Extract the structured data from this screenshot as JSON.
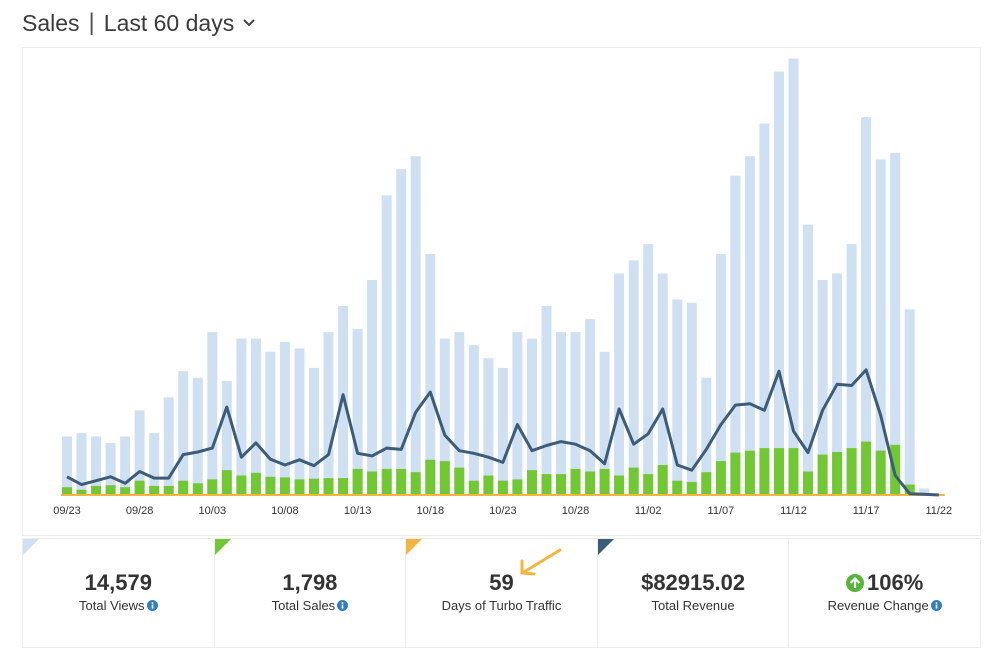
{
  "header": {
    "title": "Sales",
    "separator": "|",
    "period_label": "Last 60 days"
  },
  "colors": {
    "views_bar": "#cfe0f3",
    "sales_bar": "#72c734",
    "revenue_line": "#3d5c77",
    "baseline": "#f4b53f",
    "views_corner": "#cfe0f3",
    "sales_corner": "#72c734",
    "turbo_corner": "#f4b53f",
    "revenue_corner": "#3d5c77",
    "positive": "#58b43a",
    "info": "#2f7fbf"
  },
  "chart_data": {
    "type": "bar",
    "title": "",
    "xlabel": "",
    "ylabel": "",
    "ylim": [
      0,
      640
    ],
    "categories": [
      "09/23",
      "09/24",
      "09/25",
      "09/26",
      "09/27",
      "09/28",
      "09/29",
      "09/30",
      "10/01",
      "10/02",
      "10/03",
      "10/04",
      "10/05",
      "10/06",
      "10/07",
      "10/08",
      "10/09",
      "10/10",
      "10/11",
      "10/12",
      "10/13",
      "10/14",
      "10/15",
      "10/16",
      "10/17",
      "10/18",
      "10/19",
      "10/20",
      "10/21",
      "10/22",
      "10/23",
      "10/24",
      "10/25",
      "10/26",
      "10/27",
      "10/28",
      "10/29",
      "10/30",
      "10/31",
      "11/01",
      "11/02",
      "11/03",
      "11/04",
      "11/05",
      "11/06",
      "11/07",
      "11/08",
      "11/09",
      "11/10",
      "11/11",
      "11/12",
      "11/13",
      "11/14",
      "11/15",
      "11/16",
      "11/17",
      "11/18",
      "11/19",
      "11/20",
      "11/21",
      "11/22"
    ],
    "x_tick_labels": [
      "09/23",
      "09/28",
      "10/03",
      "10/08",
      "10/13",
      "10/18",
      "10/23",
      "10/28",
      "11/02",
      "11/07",
      "11/12",
      "11/17",
      "11/22"
    ],
    "x_tick_indices": [
      0,
      5,
      10,
      15,
      20,
      25,
      30,
      35,
      40,
      45,
      50,
      55,
      60
    ],
    "series": [
      {
        "kind": "bar",
        "values": [
          90,
          95,
          90,
          80,
          90,
          130,
          95,
          150,
          190,
          180,
          250,
          175,
          240,
          240,
          220,
          235,
          225,
          195,
          250,
          290,
          255,
          330,
          460,
          500,
          520,
          370,
          240,
          250,
          230,
          210,
          195,
          250,
          240,
          290,
          250,
          250,
          270,
          220,
          340,
          360,
          385,
          340,
          300,
          295,
          180,
          370,
          490,
          520,
          570,
          650,
          670,
          415,
          330,
          340,
          385,
          580,
          515,
          525,
          285,
          10,
          0
        ]
      },
      {
        "kind": "bar",
        "values": [
          12,
          8,
          14,
          15,
          12,
          22,
          14,
          14,
          22,
          18,
          24,
          38,
          30,
          34,
          28,
          27,
          24,
          25,
          26,
          26,
          40,
          36,
          40,
          40,
          35,
          54,
          52,
          42,
          22,
          30,
          22,
          24,
          38,
          32,
          32,
          40,
          36,
          40,
          30,
          42,
          32,
          46,
          22,
          20,
          35,
          52,
          65,
          68,
          72,
          72,
          72,
          36,
          62,
          66,
          72,
          82,
          68,
          77,
          16,
          2,
          0
        ]
      },
      {
        "kind": "line",
        "values": [
          28,
          16,
          22,
          28,
          18,
          36,
          26,
          26,
          62,
          66,
          72,
          135,
          58,
          80,
          55,
          46,
          54,
          45,
          62,
          154,
          64,
          60,
          72,
          70,
          127,
          158,
          92,
          68,
          64,
          58,
          50,
          108,
          68,
          76,
          82,
          78,
          68,
          48,
          132,
          78,
          94,
          132,
          46,
          38,
          70,
          108,
          138,
          140,
          130,
          190,
          98,
          65,
          130,
          170,
          168,
          192,
          122,
          30,
          2,
          1,
          0
        ]
      }
    ]
  },
  "stats": [
    {
      "value": "14,579",
      "label": "Total Views"
    },
    {
      "value": "1,798",
      "label": "Total Sales"
    },
    {
      "value": "59",
      "label": "Days of Turbo Traffic"
    },
    {
      "value": "$82915.02",
      "label": "Total Revenue"
    },
    {
      "value": "106%",
      "label": "Revenue Change"
    }
  ],
  "icons": {
    "period": "chevron-down-icon",
    "info": "info-icon",
    "change": "arrow-up-circle-icon",
    "pointer": "arrow-pointer-icon"
  }
}
